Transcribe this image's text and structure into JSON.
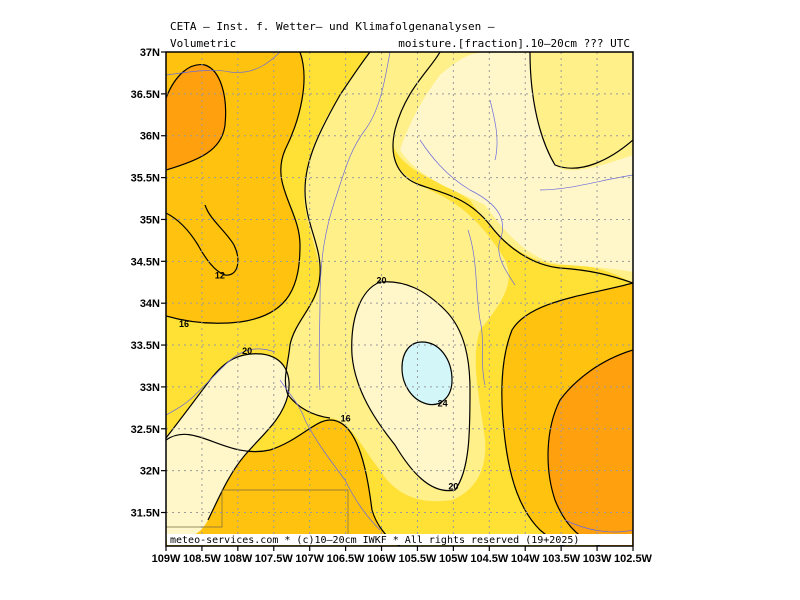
{
  "header": {
    "line1": "CETA — Inst. f. Wetter— und Klimafolgenanalysen —",
    "left2": "Volumetric",
    "right2": "moisture.[fraction].10—20cm ??? UTC"
  },
  "footer": "meteo-services.com * (c)10—20cm IWKF * All rights reserved (19+2025)",
  "axes": {
    "y_ticks": [
      "37N",
      "36.5N",
      "36N",
      "35.5N",
      "35N",
      "34.5N",
      "34N",
      "33.5N",
      "33N",
      "32.5N",
      "32N",
      "31.5N"
    ],
    "x_ticks": [
      "109W",
      "108.5W",
      "108W",
      "107.5W",
      "107W",
      "106.5W",
      "106W",
      "105.5W",
      "105W",
      "104.5W",
      "104W",
      "103.5W",
      "103W",
      "102.5W"
    ]
  },
  "contour_labels": [
    {
      "text": "12",
      "lon": -108.25,
      "lat": 34.33
    },
    {
      "text": "16",
      "lon": -108.75,
      "lat": 33.75
    },
    {
      "text": "20",
      "lon": -107.87,
      "lat": 33.43
    },
    {
      "text": "20",
      "lon": -106.0,
      "lat": 34.27
    },
    {
      "text": "24",
      "lon": -105.15,
      "lat": 32.8
    },
    {
      "text": "20",
      "lon": -105.0,
      "lat": 31.81
    },
    {
      "text": "16",
      "lon": -106.5,
      "lat": 32.62
    }
  ],
  "colors": {
    "c_lt12": "#ffa10f",
    "c_12_16": "#ffc30f",
    "c_16_20": "#ffe135",
    "c_20_24": "#fff08a",
    "c_24_28": "#fff7c9",
    "c_gt28": "#d3f6f8",
    "contour": "#000000",
    "grid": "#9a9a9a",
    "river": "#6a6adc"
  }
}
